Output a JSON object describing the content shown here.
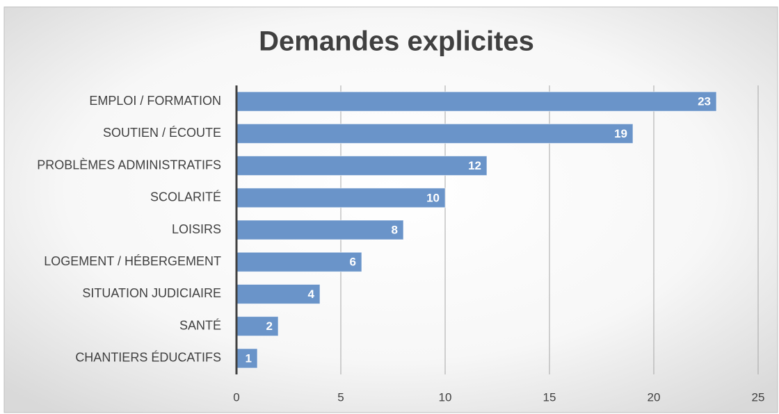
{
  "chart_data": {
    "type": "bar",
    "orientation": "horizontal",
    "title": "Demandes explicites",
    "categories": [
      "EMPLOI / FORMATION",
      "SOUTIEN / ÉCOUTE",
      "PROBLÈMES ADMINISTRATIFS",
      "SCOLARITÉ",
      "LOISIRS",
      "LOGEMENT / HÉBERGEMENT",
      "SITUATION JUDICIAIRE",
      "SANTÉ",
      "CHANTIERS ÉDUCATIFS"
    ],
    "values": [
      23,
      19,
      12,
      10,
      8,
      6,
      4,
      2,
      1
    ],
    "color": "#6a94c9",
    "xlim": [
      0,
      25
    ],
    "xticks": [
      0,
      5,
      10,
      15,
      20,
      25
    ],
    "grid": true
  }
}
